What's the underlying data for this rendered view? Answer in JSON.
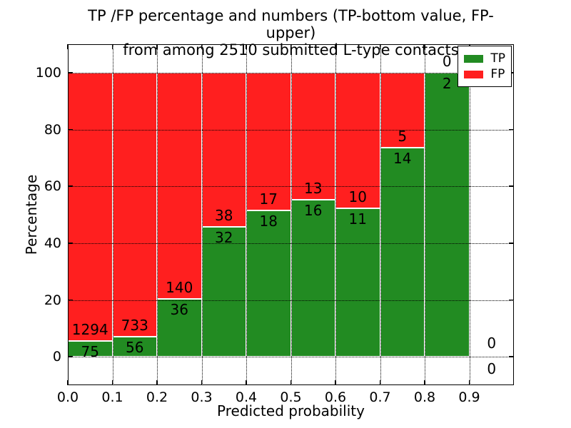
{
  "chart_data": {
    "type": "bar",
    "stacked": true,
    "title_line1": "TP /FP percentage and numbers (TP-bottom value, FP-upper)",
    "title_line2": "from among 2510 submitted L-type contacts",
    "total_submitted_contacts": 2510,
    "xlabel": "Predicted probability",
    "ylabel": "Percentage",
    "xlim": [
      0.0,
      1.0
    ],
    "ylim": [
      -10,
      110
    ],
    "x_tick_values": [
      0.0,
      0.1,
      0.2,
      0.3,
      0.4,
      0.5,
      0.6,
      0.7,
      0.8,
      0.9
    ],
    "x_tick_labels": [
      "0.0",
      "0.1",
      "0.2",
      "0.3",
      "0.4",
      "0.5",
      "0.6",
      "0.7",
      "0.8",
      "0.9"
    ],
    "y_tick_values": [
      0,
      20,
      40,
      60,
      80,
      100
    ],
    "y_tick_labels": [
      "0",
      "20",
      "40",
      "60",
      "80",
      "100"
    ],
    "bin_edges": [
      0.0,
      0.1,
      0.2,
      0.3,
      0.4,
      0.5,
      0.6,
      0.7,
      0.8,
      0.9,
      1.0
    ],
    "bins": [
      {
        "range": "0.0-0.1",
        "tp": 75,
        "fp": 1294,
        "tp_pct": 5.48,
        "fp_pct": 94.52
      },
      {
        "range": "0.1-0.2",
        "tp": 56,
        "fp": 733,
        "tp_pct": 7.1,
        "fp_pct": 92.9
      },
      {
        "range": "0.2-0.3",
        "tp": 36,
        "fp": 140,
        "tp_pct": 20.45,
        "fp_pct": 79.55
      },
      {
        "range": "0.3-0.4",
        "tp": 32,
        "fp": 38,
        "tp_pct": 45.71,
        "fp_pct": 54.29
      },
      {
        "range": "0.4-0.5",
        "tp": 18,
        "fp": 17,
        "tp_pct": 51.43,
        "fp_pct": 48.57
      },
      {
        "range": "0.5-0.6",
        "tp": 16,
        "fp": 13,
        "tp_pct": 55.17,
        "fp_pct": 44.83
      },
      {
        "range": "0.6-0.7",
        "tp": 11,
        "fp": 10,
        "tp_pct": 52.38,
        "fp_pct": 47.62
      },
      {
        "range": "0.7-0.8",
        "tp": 14,
        "fp": 5,
        "tp_pct": 73.68,
        "fp_pct": 26.32
      },
      {
        "range": "0.8-0.9",
        "tp": 2,
        "fp": 0,
        "tp_pct": 100.0,
        "fp_pct": 0.0
      },
      {
        "range": "0.9-1.0",
        "tp": 0,
        "fp": 0,
        "tp_pct": 0.0,
        "fp_pct": 0.0
      }
    ],
    "grid": {
      "style": "dotted",
      "color": "#000000",
      "drawn_above_bars": true
    },
    "legend": {
      "location": "upper right",
      "entries": [
        {
          "label": "TP",
          "color": "#228b22"
        },
        {
          "label": "FP",
          "color": "#ff1f1f"
        }
      ]
    },
    "colors": {
      "tp": "#228b22",
      "fp": "#ff1f1f",
      "bar_edge": "#ffffff",
      "background": "#ffffff",
      "frame": "#000000",
      "text": "#000000"
    }
  }
}
